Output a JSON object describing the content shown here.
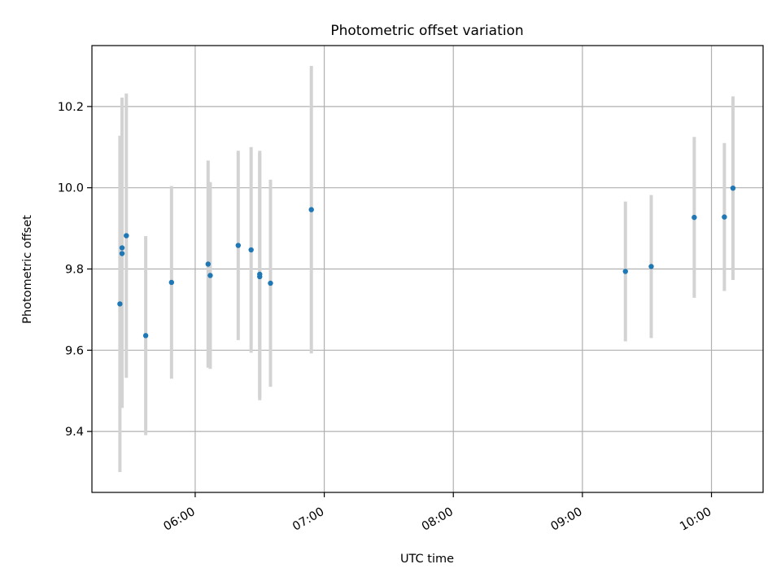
{
  "chart_data": {
    "type": "scatter",
    "title": "Photometric offset variation",
    "xlabel": "UTC time",
    "ylabel": "Photometric offset",
    "x_axis_kind": "time",
    "xlim": [
      "05:12",
      "10:24"
    ],
    "ylim": [
      9.25,
      10.35
    ],
    "x_ticks": [
      "06:00",
      "07:00",
      "08:00",
      "09:00",
      "10:00"
    ],
    "y_ticks": [
      "9.4",
      "9.6",
      "9.8",
      "10.0",
      "10.2"
    ],
    "grid": true,
    "legend": "none",
    "point_color": "#1f77b4",
    "errorbar_color": "#d3d3d3",
    "series": [
      {
        "points": [
          {
            "x": "05:25",
            "y": 9.714,
            "err": 0.414
          },
          {
            "x": "05:26",
            "y": 9.838,
            "err": 0.38
          },
          {
            "x": "05:26",
            "y": 9.852,
            "err": 0.37
          },
          {
            "x": "05:28",
            "y": 9.882,
            "err": 0.35
          },
          {
            "x": "05:37",
            "y": 9.636,
            "err": 0.245
          },
          {
            "x": "05:49",
            "y": 9.767,
            "err": 0.237
          },
          {
            "x": "06:06",
            "y": 9.812,
            "err": 0.255
          },
          {
            "x": "06:07",
            "y": 9.784,
            "err": 0.23
          },
          {
            "x": "06:20",
            "y": 9.858,
            "err": 0.233
          },
          {
            "x": "06:26",
            "y": 9.847,
            "err": 0.253
          },
          {
            "x": "06:30",
            "y": 9.781,
            "err": 0.304
          },
          {
            "x": "06:30",
            "y": 9.787,
            "err": 0.304
          },
          {
            "x": "06:35",
            "y": 9.765,
            "err": 0.255
          },
          {
            "x": "06:54",
            "y": 9.946,
            "err": 0.354
          },
          {
            "x": "09:20",
            "y": 9.794,
            "err": 0.172
          },
          {
            "x": "09:32",
            "y": 9.806,
            "err": 0.176
          },
          {
            "x": "09:52",
            "y": 9.927,
            "err": 0.198
          },
          {
            "x": "10:06",
            "y": 9.928,
            "err": 0.182
          },
          {
            "x": "10:10",
            "y": 9.999,
            "err": 0.226
          }
        ]
      }
    ]
  }
}
